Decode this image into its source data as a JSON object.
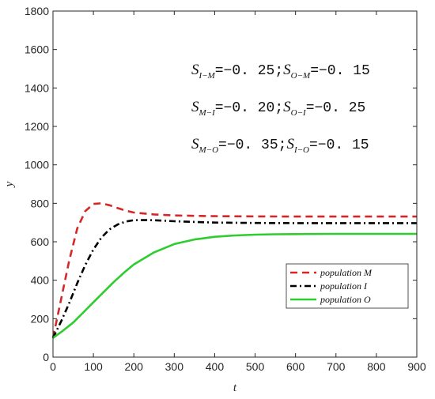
{
  "chart_data": {
    "type": "line",
    "title": "",
    "xlabel": "t",
    "ylabel": "y",
    "xlim": [
      0,
      900
    ],
    "ylim": [
      0,
      1800
    ],
    "xticks": [
      0,
      100,
      200,
      300,
      400,
      500,
      600,
      700,
      800,
      900
    ],
    "yticks": [
      0,
      200,
      400,
      600,
      800,
      1000,
      1200,
      1400,
      1600,
      1800
    ],
    "grid": false,
    "legend_position": "bottom-right",
    "series": [
      {
        "name": "population M",
        "color": "#d62728",
        "style": "dashed",
        "x": [
          0,
          20,
          40,
          60,
          80,
          100,
          120,
          140,
          160,
          180,
          200,
          250,
          300,
          400,
          500,
          600,
          700,
          800,
          900
        ],
        "y": [
          100,
          300,
          500,
          670,
          760,
          797,
          800,
          790,
          775,
          762,
          752,
          742,
          737,
          733,
          732,
          731,
          731,
          731,
          731
        ]
      },
      {
        "name": "population I",
        "color": "#000000",
        "style": "dash-dot",
        "x": [
          0,
          20,
          40,
          60,
          80,
          100,
          120,
          140,
          160,
          180,
          200,
          220,
          250,
          300,
          350,
          400,
          500,
          600,
          700,
          800,
          900
        ],
        "y": [
          100,
          185,
          280,
          385,
          480,
          560,
          622,
          665,
          690,
          705,
          712,
          713,
          712,
          707,
          703,
          700,
          698,
          697,
          697,
          697,
          697
        ]
      },
      {
        "name": "population O",
        "color": "#2ecc2e",
        "style": "solid",
        "x": [
          0,
          25,
          50,
          75,
          100,
          125,
          150,
          175,
          200,
          250,
          300,
          350,
          400,
          450,
          500,
          550,
          600,
          700,
          800,
          900
        ],
        "y": [
          100,
          138,
          180,
          232,
          285,
          338,
          390,
          438,
          482,
          545,
          588,
          612,
          626,
          633,
          637,
          639,
          640,
          641,
          641,
          641
        ]
      }
    ],
    "annotations": [
      {
        "line": [
          {
            "label": "S",
            "sub": "I−M",
            "value": "=−0. 25;"
          },
          {
            "label": "S",
            "sub": "O−M",
            "value": "=−0. 15"
          }
        ]
      },
      {
        "line": [
          {
            "label": "S",
            "sub": "M−I",
            "value": "=−0. 20;"
          },
          {
            "label": "S",
            "sub": "O−I",
            "value": "=−0. 25"
          }
        ]
      },
      {
        "line": [
          {
            "label": "S",
            "sub": "M−O",
            "value": "=−0. 35;"
          },
          {
            "label": "S",
            "sub": "I−O",
            "value": "=−0. 15"
          }
        ]
      }
    ]
  }
}
